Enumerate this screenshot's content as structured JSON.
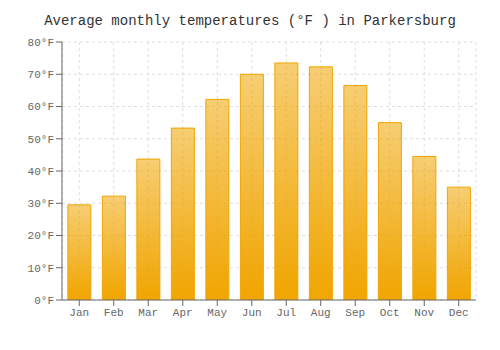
{
  "chart_data": {
    "type": "bar",
    "title": "Average monthly temperatures (°F ) in Parkersburg",
    "categories": [
      "Jan",
      "Feb",
      "Mar",
      "Apr",
      "May",
      "Jun",
      "Jul",
      "Aug",
      "Sep",
      "Oct",
      "Nov",
      "Dec"
    ],
    "values": [
      29.5,
      32.2,
      43.7,
      53.3,
      62.2,
      70.0,
      73.5,
      72.3,
      66.5,
      55.0,
      44.5,
      35.0
    ],
    "color": "#F0A500",
    "ylim": [
      0,
      80
    ],
    "yticks": [
      {
        "value": 0,
        "label": "0°F"
      },
      {
        "value": 10,
        "label": "10°F"
      },
      {
        "value": 20,
        "label": "20°F"
      },
      {
        "value": 30,
        "label": "30°F"
      },
      {
        "value": 40,
        "label": "40°F"
      },
      {
        "value": 50,
        "label": "50°F"
      },
      {
        "value": 60,
        "label": "60°F"
      },
      {
        "value": 70,
        "label": "70°F"
      },
      {
        "value": 80,
        "label": "80°F"
      }
    ],
    "grid": true
  }
}
